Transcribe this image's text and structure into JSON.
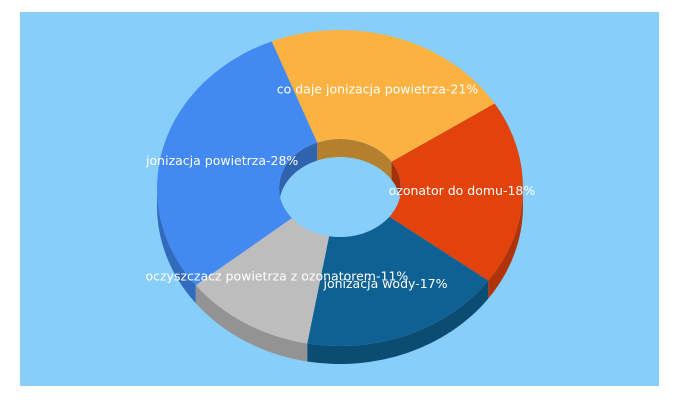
{
  "chart_data": {
    "type": "pie",
    "variant": "3d-donut",
    "title": "",
    "background_color": "#87cefa",
    "slices": [
      {
        "label": "jonizacja powietrza-28%",
        "value": 28,
        "color": "#4289f1"
      },
      {
        "label": "co daje jonizacja powietrza-21%",
        "value": 21,
        "color": "#fbb240"
      },
      {
        "label": "ozonator do domu-18%",
        "value": 18,
        "color": "#e2420b"
      },
      {
        "label": "jonizacja wody-17%",
        "value": 17,
        "color": "#0f6193"
      },
      {
        "label": "oczyszczacz powietrza z ozonatorem-11%",
        "value": 11,
        "color": "#bdbdbd"
      }
    ]
  }
}
